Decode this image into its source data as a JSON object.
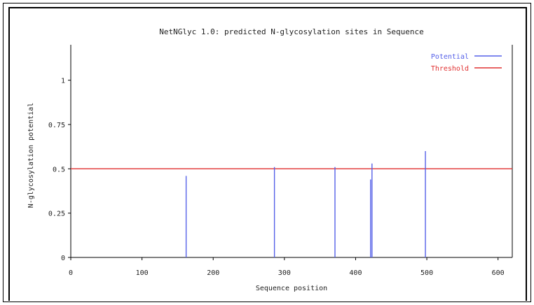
{
  "chart_data": {
    "type": "bar",
    "title": "NetNGlyc 1.0: predicted N-glycosylation sites in Sequence",
    "xlabel": "Sequence position",
    "ylabel": "N-glycosylation potential",
    "xlim": [
      0,
      620
    ],
    "ylim": [
      0,
      1.2
    ],
    "x_ticks": [
      0,
      100,
      200,
      300,
      400,
      500,
      600
    ],
    "x_tick_labels": [
      "0",
      "100",
      "200",
      "300",
      "400",
      "500",
      "600"
    ],
    "y_ticks": [
      0,
      0.25,
      0.5,
      0.75,
      1
    ],
    "y_tick_labels": [
      "0",
      "0.25",
      "0.5",
      "0.75",
      "1"
    ],
    "grid": false,
    "legend_position": "top-right",
    "series": [
      {
        "name": "Potential",
        "color": "#5560e8",
        "x": [
          162,
          286,
          371,
          421,
          423,
          498
        ],
        "values": [
          0.46,
          0.51,
          0.51,
          0.44,
          0.53,
          0.6
        ]
      }
    ],
    "threshold": {
      "name": "Threshold",
      "value": 0.5,
      "color": "#e03030"
    }
  }
}
